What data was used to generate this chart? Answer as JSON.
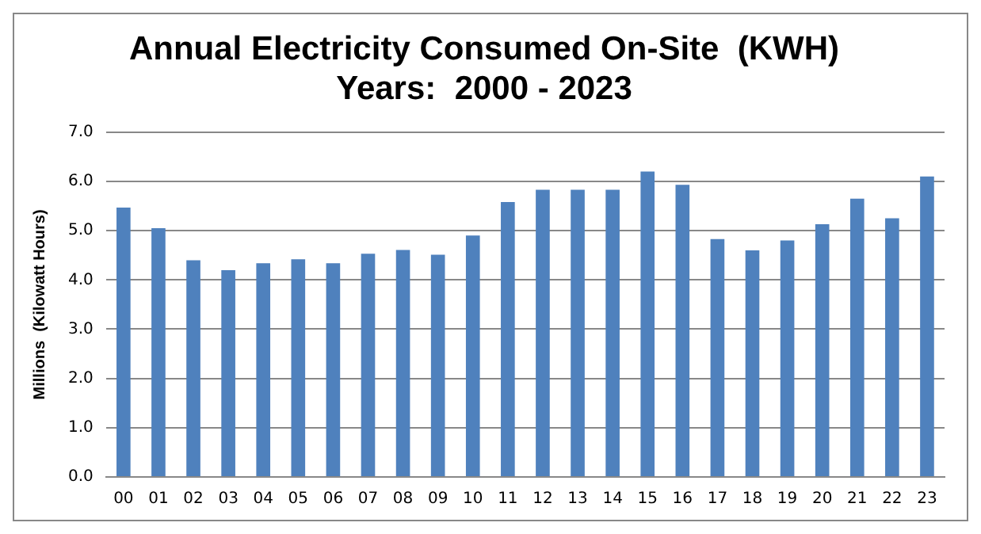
{
  "chart_data": {
    "type": "bar",
    "title": [
      "Annual Electricity Consumed On-Site  (KWH)",
      "Years:  2000 - 2023"
    ],
    "ylabel": "Millions  (Kilowatt Hours)",
    "categories": [
      "00",
      "01",
      "02",
      "03",
      "04",
      "05",
      "06",
      "07",
      "08",
      "09",
      "10",
      "11",
      "12",
      "13",
      "14",
      "15",
      "16",
      "17",
      "18",
      "19",
      "20",
      "21",
      "22",
      "23"
    ],
    "values": [
      5.47,
      5.05,
      4.4,
      4.2,
      4.34,
      4.42,
      4.34,
      4.53,
      4.61,
      4.51,
      4.9,
      5.58,
      5.83,
      5.83,
      5.83,
      6.2,
      5.93,
      4.83,
      4.6,
      4.8,
      5.13,
      5.65,
      5.25,
      6.1
    ],
    "color": "#4f81bd",
    "ylim": [
      0,
      7
    ],
    "yticks": [
      {
        "value": 0,
        "label": "0.0"
      },
      {
        "value": 1,
        "label": "1.0"
      },
      {
        "value": 2,
        "label": "2.0"
      },
      {
        "value": 3,
        "label": "3.0"
      },
      {
        "value": 4,
        "label": "4.0"
      },
      {
        "value": 5,
        "label": "5.0"
      },
      {
        "value": 6,
        "label": "6.0"
      },
      {
        "value": 7,
        "label": "7.0"
      }
    ],
    "grid": "y",
    "legend": false
  }
}
